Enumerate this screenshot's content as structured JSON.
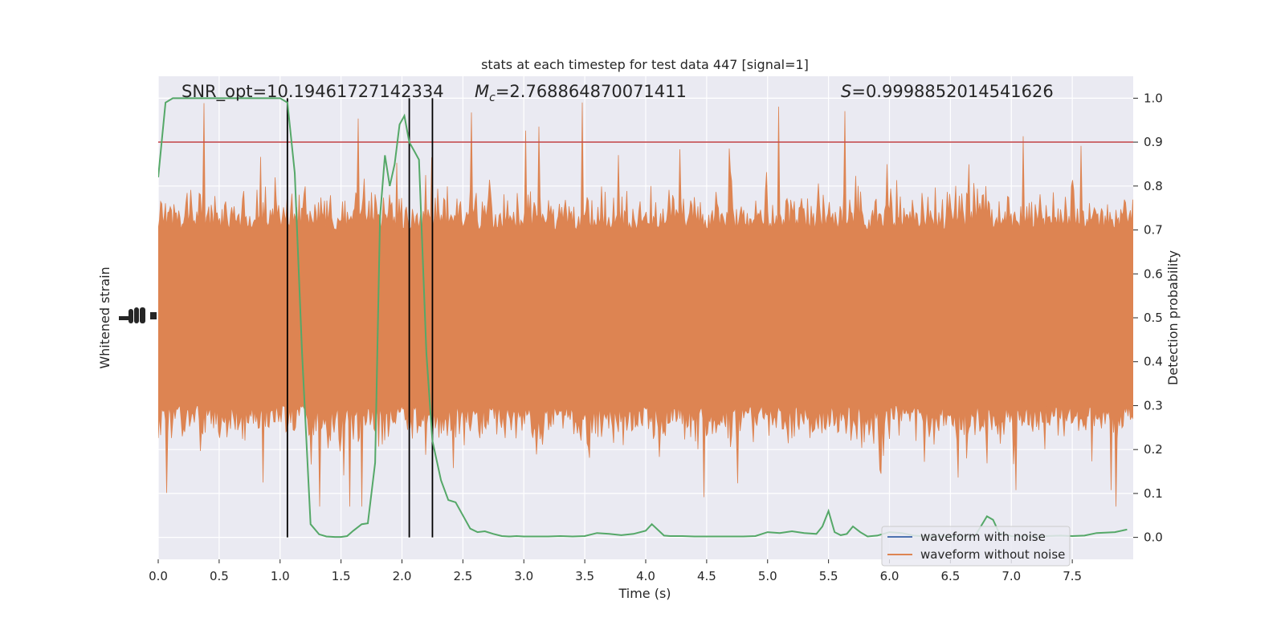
{
  "chart_data": {
    "type": "line",
    "title": "stats at each timestep for test data 447 [signal=1]",
    "xlabel": "Time (s)",
    "ylabel_left": "Whitened strain",
    "ylabel_right": "Detection probability",
    "xlim": [
      0,
      8
    ],
    "ylim_right": [
      -0.05,
      1.05
    ],
    "x_ticks": [
      "0.0",
      "0.5",
      "1.0",
      "1.5",
      "2.0",
      "2.5",
      "3.0",
      "3.5",
      "4.0",
      "4.5",
      "5.0",
      "5.5",
      "6.0",
      "6.5",
      "7.0",
      "7.5"
    ],
    "y_ticks_right": [
      "0.0",
      "0.1",
      "0.2",
      "0.3",
      "0.4",
      "0.5",
      "0.6",
      "0.7",
      "0.8",
      "0.9",
      "1.0"
    ],
    "grid": true,
    "annotations": {
      "snr": "SNR_opt=10.19461727142334",
      "mc_symbol": "M",
      "mc_sub": "c",
      "mc_value": "=2.768864870071411",
      "s_symbol": "S",
      "s_value": "=0.9998852014541626"
    },
    "threshold": 0.9,
    "vertical_lines_x": [
      1.06,
      2.06,
      2.25
    ],
    "legend": {
      "placement": "lower-right",
      "entries": [
        {
          "label": "waveform with noise",
          "color": "#4c72b0"
        },
        {
          "label": "waveform without noise",
          "color": "#dd8452"
        }
      ]
    },
    "colors": {
      "noise_strain": "#dd8452",
      "clean_waveform": "#4c72b0",
      "probability": "#55a868",
      "threshold": "#c44e52",
      "plot_background": "#eaeaf2",
      "vertical_lines": "#000000"
    },
    "series": [
      {
        "name": "waveform without noise",
        "type": "strain-noise-band",
        "envelope_detection_prob_units": [
          0.3,
          0.7
        ]
      },
      {
        "name": "detection probability",
        "x": [
          0.0,
          0.06,
          0.12,
          0.2,
          0.3,
          0.4,
          0.5,
          0.6,
          0.7,
          0.8,
          0.9,
          1.0,
          1.06,
          1.12,
          1.18,
          1.25,
          1.32,
          1.38,
          1.45,
          1.5,
          1.55,
          1.6,
          1.67,
          1.72,
          1.78,
          1.82,
          1.86,
          1.9,
          1.94,
          1.98,
          2.02,
          2.06,
          2.1,
          2.14,
          2.2,
          2.25,
          2.32,
          2.38,
          2.44,
          2.5,
          2.56,
          2.62,
          2.68,
          2.75,
          2.82,
          2.88,
          2.94,
          3.0,
          3.1,
          3.2,
          3.3,
          3.4,
          3.5,
          3.6,
          3.7,
          3.8,
          3.9,
          4.0,
          4.05,
          4.15,
          4.2,
          4.3,
          4.4,
          4.5,
          4.6,
          4.7,
          4.8,
          4.9,
          5.0,
          5.1,
          5.2,
          5.3,
          5.4,
          5.45,
          5.5,
          5.55,
          5.6,
          5.65,
          5.7,
          5.76,
          5.82,
          5.9,
          6.0,
          6.1,
          6.2,
          6.3,
          6.5,
          6.7,
          6.8,
          6.85,
          6.9,
          7.0,
          7.2,
          7.4,
          7.5,
          7.6,
          7.7,
          7.85,
          7.95
        ],
        "y": [
          0.82,
          0.99,
          1.0,
          1.0,
          1.0,
          1.0,
          1.0,
          1.0,
          1.0,
          1.0,
          1.0,
          1.0,
          0.99,
          0.83,
          0.42,
          0.03,
          0.007,
          0.002,
          0.001,
          0.001,
          0.003,
          0.015,
          0.03,
          0.032,
          0.17,
          0.73,
          0.87,
          0.8,
          0.85,
          0.94,
          0.96,
          0.9,
          0.88,
          0.86,
          0.42,
          0.22,
          0.13,
          0.085,
          0.08,
          0.05,
          0.02,
          0.012,
          0.014,
          0.008,
          0.003,
          0.002,
          0.003,
          0.002,
          0.002,
          0.002,
          0.003,
          0.002,
          0.003,
          0.01,
          0.008,
          0.005,
          0.008,
          0.015,
          0.03,
          0.004,
          0.003,
          0.003,
          0.002,
          0.002,
          0.002,
          0.002,
          0.002,
          0.003,
          0.012,
          0.01,
          0.014,
          0.01,
          0.008,
          0.025,
          0.06,
          0.012,
          0.005,
          0.008,
          0.025,
          0.012,
          0.002,
          0.004,
          0.012,
          0.01,
          0.004,
          0.002,
          0.003,
          0.002,
          0.048,
          0.04,
          0.01,
          0.003,
          0.002,
          0.004,
          0.003,
          0.004,
          0.01,
          0.012,
          0.018
        ]
      }
    ]
  }
}
